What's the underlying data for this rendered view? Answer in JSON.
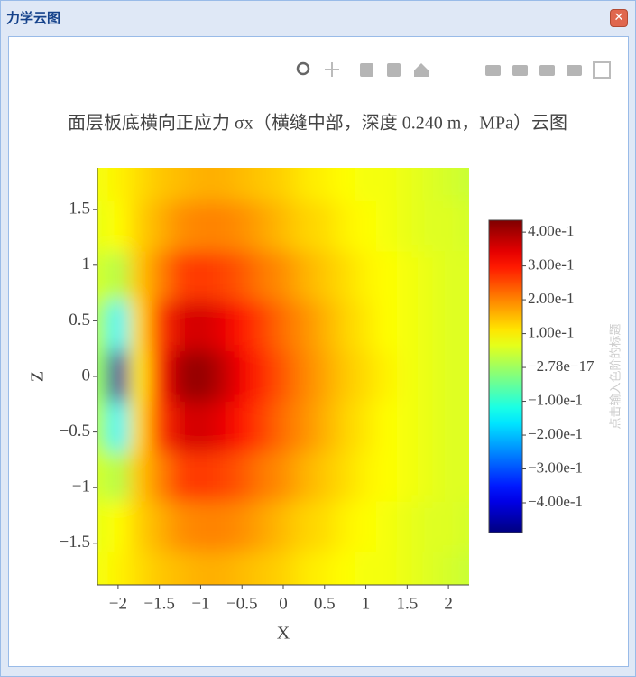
{
  "window": {
    "title": "力学云图"
  },
  "chart_data": {
    "type": "contour",
    "title": "面层板底横向正应力 σx（横缝中部，深度 0.240 m，MPa）云图",
    "x_label": "X",
    "y_label": "Z",
    "x": [
      -2.25,
      -2,
      -1.75,
      -1.5,
      -1.25,
      -1,
      -0.75,
      -0.5,
      -0.25,
      0,
      0.25,
      0.5,
      0.75,
      1,
      1.25,
      1.5,
      1.75,
      2,
      2.25
    ],
    "y": [
      1.8,
      1.35,
      0.9,
      0.45,
      0,
      -0.45,
      -0.9,
      -1.35,
      -1.8
    ],
    "z": [
      [
        0.08,
        0.1,
        0.12,
        0.14,
        0.15,
        0.16,
        0.16,
        0.15,
        0.14,
        0.13,
        0.11,
        0.1,
        0.09,
        0.08,
        0.08,
        0.07,
        0.06,
        0.05,
        0.04
      ],
      [
        0.07,
        0.09,
        0.13,
        0.16,
        0.19,
        0.2,
        0.2,
        0.19,
        0.17,
        0.15,
        0.13,
        0.12,
        0.1,
        0.09,
        0.08,
        0.07,
        0.06,
        0.06,
        0.05
      ],
      [
        0.05,
        0.02,
        0.14,
        0.2,
        0.26,
        0.27,
        0.26,
        0.24,
        0.21,
        0.19,
        0.16,
        0.14,
        0.12,
        0.1,
        0.09,
        0.08,
        0.07,
        0.06,
        0.06
      ],
      [
        0.02,
        -0.15,
        0.12,
        0.27,
        0.35,
        0.36,
        0.34,
        0.3,
        0.26,
        0.22,
        0.19,
        0.16,
        0.13,
        0.11,
        0.09,
        0.08,
        0.07,
        0.06,
        0.06
      ],
      [
        0.0,
        -0.45,
        0.1,
        0.3,
        0.4,
        0.42,
        0.38,
        0.33,
        0.28,
        0.24,
        0.2,
        0.17,
        0.14,
        0.12,
        0.1,
        0.08,
        0.07,
        0.06,
        0.06
      ],
      [
        0.02,
        -0.15,
        0.12,
        0.27,
        0.35,
        0.36,
        0.34,
        0.3,
        0.26,
        0.22,
        0.19,
        0.16,
        0.13,
        0.11,
        0.09,
        0.08,
        0.07,
        0.06,
        0.06
      ],
      [
        0.05,
        0.02,
        0.14,
        0.2,
        0.26,
        0.27,
        0.26,
        0.24,
        0.21,
        0.19,
        0.16,
        0.14,
        0.12,
        0.1,
        0.09,
        0.08,
        0.07,
        0.06,
        0.06
      ],
      [
        0.07,
        0.09,
        0.13,
        0.16,
        0.19,
        0.2,
        0.2,
        0.19,
        0.17,
        0.15,
        0.13,
        0.12,
        0.1,
        0.09,
        0.08,
        0.07,
        0.06,
        0.06,
        0.05
      ],
      [
        0.08,
        0.1,
        0.12,
        0.14,
        0.15,
        0.16,
        0.16,
        0.15,
        0.14,
        0.13,
        0.11,
        0.1,
        0.09,
        0.08,
        0.08,
        0.07,
        0.06,
        0.05,
        0.04
      ]
    ],
    "xlim": [
      -2.25,
      2.25
    ],
    "ylim": [
      -1.875,
      1.875
    ],
    "xticks": [
      {
        "value": -2,
        "label": "−2"
      },
      {
        "value": -1.5,
        "label": "−1.5"
      },
      {
        "value": -1,
        "label": "−1"
      },
      {
        "value": -0.5,
        "label": "−0.5"
      },
      0,
      0.5,
      1,
      1.5,
      2
    ],
    "yticks": [
      {
        "value": -1.5,
        "label": "−1.5"
      },
      {
        "value": -1,
        "label": "−1"
      },
      {
        "value": -0.5,
        "label": "−0.5"
      },
      0,
      0.5,
      1,
      1.5
    ],
    "colorbar": {
      "title": "点击输入色阶的标题",
      "range": [
        -0.488,
        0.435
      ],
      "ticks": [
        {
          "value": 0.4,
          "label": "4.00e-1"
        },
        {
          "value": 0.3,
          "label": "3.00e-1"
        },
        {
          "value": 0.2,
          "label": "2.00e-1"
        },
        {
          "value": 0.1,
          "label": "1.00e-1"
        },
        {
          "value": -2.78e-17,
          "label": "−2.78e−17"
        },
        {
          "value": -0.1,
          "label": "−1.00e-1"
        },
        {
          "value": -0.2,
          "label": "−2.00e-1"
        },
        {
          "value": -0.3,
          "label": "−3.00e-1"
        },
        {
          "value": -0.4,
          "label": "−4.00e-1"
        }
      ]
    }
  }
}
